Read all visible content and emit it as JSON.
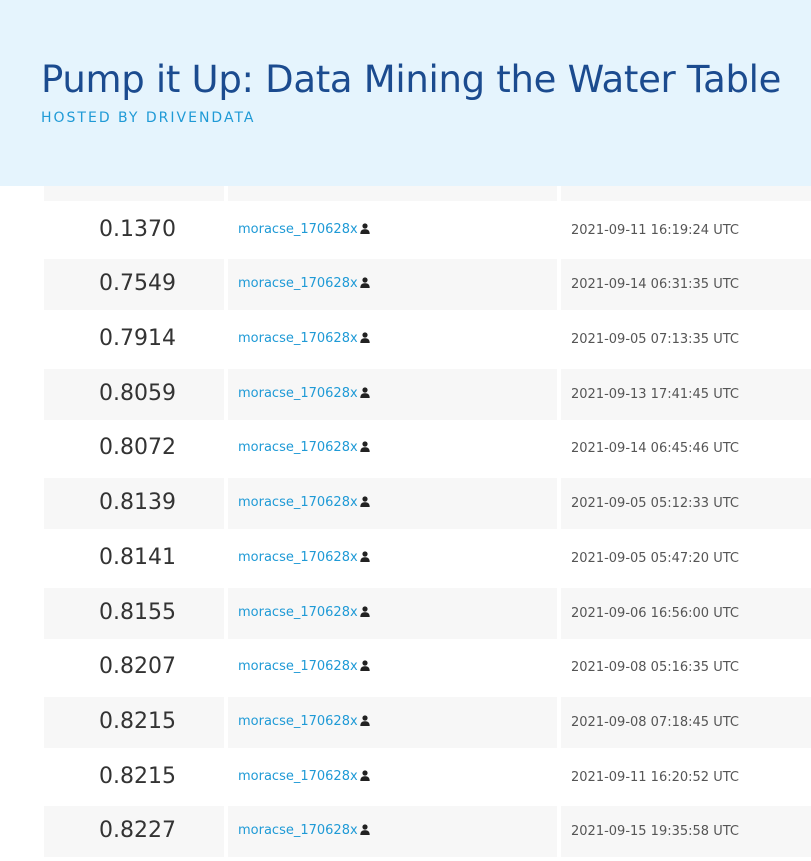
{
  "header": {
    "title": "Pump it Up: Data Mining the Water Table",
    "subtitle": "HOSTED BY DRIVENDATA"
  },
  "rows": [
    {
      "score": "",
      "user": "",
      "time": "",
      "partial": true
    },
    {
      "score": "0.1370",
      "user": "moracse_170628x",
      "time": "2021-09-11 16:19:24 UTC"
    },
    {
      "score": "0.7549",
      "user": "moracse_170628x",
      "time": "2021-09-14 06:31:35 UTC"
    },
    {
      "score": "0.7914",
      "user": "moracse_170628x",
      "time": "2021-09-05 07:13:35 UTC"
    },
    {
      "score": "0.8059",
      "user": "moracse_170628x",
      "time": "2021-09-13 17:41:45 UTC"
    },
    {
      "score": "0.8072",
      "user": "moracse_170628x",
      "time": "2021-09-14 06:45:46 UTC"
    },
    {
      "score": "0.8139",
      "user": "moracse_170628x",
      "time": "2021-09-05 05:12:33 UTC"
    },
    {
      "score": "0.8141",
      "user": "moracse_170628x",
      "time": "2021-09-05 05:47:20 UTC"
    },
    {
      "score": "0.8155",
      "user": "moracse_170628x",
      "time": "2021-09-06 16:56:00 UTC"
    },
    {
      "score": "0.8207",
      "user": "moracse_170628x",
      "time": "2021-09-08 05:16:35 UTC"
    },
    {
      "score": "0.8215",
      "user": "moracse_170628x",
      "time": "2021-09-08 07:18:45 UTC"
    },
    {
      "score": "0.8215",
      "user": "moracse_170628x",
      "time": "2021-09-11 16:20:52 UTC"
    },
    {
      "score": "0.8227",
      "user": "moracse_170628x",
      "time": "2021-09-15 19:35:58 UTC"
    }
  ],
  "icons": {
    "user_icon": "user-icon"
  },
  "colors": {
    "header_bg": "#e5f4fd",
    "title": "#1b4b8f",
    "accent": "#1f9ad6",
    "row_alt": "#f7f7f7"
  }
}
